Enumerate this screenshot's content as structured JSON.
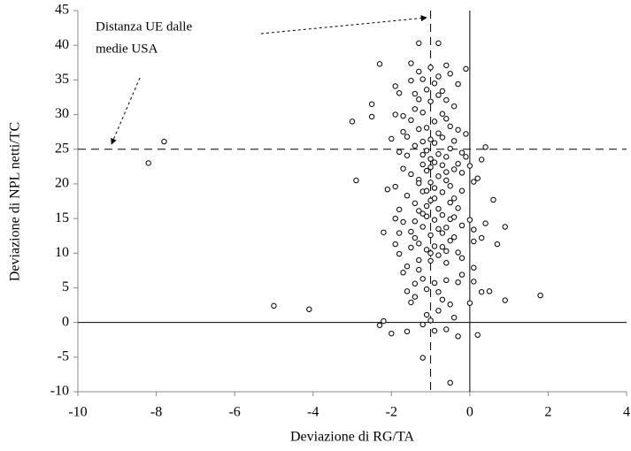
{
  "chart_data": {
    "type": "scatter",
    "x_label": "Deviazione di RG/TA",
    "y_label": "Deviazione  di NPL netti/TC",
    "annotation": [
      "Distanza UE dalle",
      "medie USA"
    ],
    "xlim": [
      -10,
      4
    ],
    "xticks": [
      -10,
      -8,
      -6,
      -4,
      -2,
      0,
      2,
      4
    ],
    "ylim": [
      -10,
      45
    ],
    "yticks": [
      -10,
      -5,
      0,
      5,
      10,
      15,
      20,
      25,
      30,
      35,
      40,
      45
    ],
    "dashed_lines": {
      "x": -1,
      "y": 25
    },
    "zero_lines": true,
    "color": "#000000",
    "x": [
      -8.2,
      -7.8,
      -5,
      -4.1,
      -3,
      -2.9,
      -2.5,
      -2.5,
      -2.3,
      -2.2,
      -2.3,
      -2.2,
      -2,
      -2.1,
      -2,
      -1.3,
      -0.8,
      -1.2,
      -0.5,
      -0.3,
      0.2,
      1.8,
      0.9,
      0.9,
      0.7,
      0.6,
      0.4,
      0.4,
      0.5,
      0.3,
      0.2,
      0.1,
      0,
      0.1,
      0.3,
      0.1,
      0.1,
      0,
      -0.1,
      -0.1,
      -0.1,
      0,
      0.3,
      0.1,
      -0.3,
      -0.5,
      -0.6,
      -1.5,
      -1.9,
      -1.8,
      -1.7,
      -1.6,
      -1.5,
      -1.4,
      -1.3,
      -1.2,
      -1.1,
      -1.0,
      -0.9,
      -0.8,
      -0.7,
      -0.6,
      -0.5,
      -0.4,
      -0.3,
      -1.8,
      -1.6,
      -1.4,
      -1.2,
      -1.1,
      -1.0,
      -0.9,
      -0.8,
      -0.7,
      -0.6,
      -0.5,
      -0.4,
      -0.3,
      -1.7,
      -1.5,
      -1.3,
      -1.2,
      -1.1,
      -1.0,
      -0.9,
      -0.8,
      -0.7,
      -0.6,
      -0.5,
      -0.4,
      -0.3,
      -1.6,
      -1.4,
      -1.3,
      -1.2,
      -1.1,
      -1.0,
      -0.9,
      -0.8,
      -0.7,
      -0.6,
      -0.5,
      -0.4,
      -1.7,
      -1.5,
      -1.4,
      -1.3,
      -1.2,
      -1.1,
      -1.0,
      -0.9,
      -0.8,
      -0.7,
      -0.6,
      -0.5,
      -0.3,
      -1.8,
      -1.6,
      -1.4,
      -1.3,
      -1.2,
      -1.1,
      -1.0,
      -0.9,
      -0.8,
      -0.7,
      -0.6,
      -0.5,
      -0.3,
      -1.5,
      -1.1,
      -1.0,
      -0.8,
      -0.4,
      -1.2,
      -0.9,
      -1.6,
      -0.6,
      -1.5,
      -1.3,
      -1.0,
      -0.8,
      -0.7,
      -0.6,
      -1.4,
      -1.2,
      -0.9,
      -1.1,
      -0.8,
      -1.0,
      -1.3,
      -1.9,
      -1.7,
      -0.4,
      -0.2,
      -0.2,
      -0.2,
      -0.2,
      -0.2,
      -0.2,
      -1.9,
      -1.9,
      -1.9,
      -1.8,
      -1.8,
      -1.7,
      -1.6,
      -1.4,
      -1.3,
      -1.0,
      -0.9,
      -1.2,
      -0.7,
      -0.6,
      -0.5,
      -0.4,
      -0.7,
      -0.8,
      -1.1,
      -1.1,
      -0.9,
      -1.2,
      -1.4,
      -0.6,
      -1.0,
      -1.5,
      -1.3
    ],
    "y": [
      23,
      26.1,
      2.4,
      1.9,
      29,
      20.5,
      31.5,
      29.7,
      37.3,
      13,
      -0.4,
      0.2,
      -1.6,
      19.2,
      26.5,
      40.3,
      40.3,
      -5.1,
      -8.7,
      -2,
      -1.8,
      3.9,
      3.2,
      13.8,
      11.3,
      17.7,
      25.3,
      14.3,
      4.5,
      4.4,
      20.8,
      7.9,
      14.8,
      13.4,
      12.2,
      11.7,
      5.9,
      2.8,
      36.6,
      27.2,
      23.9,
      22.6,
      23.5,
      20.3,
      34.4,
      35.9,
      37.1,
      37.4,
      34.1,
      33.1,
      27.5,
      26.8,
      29.2,
      30.8,
      32.2,
      35.1,
      33.6,
      31.9,
      34.5,
      32.8,
      30.1,
      29.4,
      28.3,
      31.2,
      27.8,
      24.6,
      24.1,
      25.5,
      26.1,
      24.8,
      23.6,
      25.9,
      24.3,
      22.7,
      23.9,
      25.1,
      22.1,
      22.9,
      22.2,
      21.4,
      20.6,
      22.8,
      21.9,
      20.2,
      19.4,
      21.1,
      18.8,
      20.5,
      19.7,
      17.9,
      16.5,
      18.3,
      17.2,
      16.1,
      18.9,
      15.3,
      17.6,
      14.8,
      16.4,
      15.5,
      13.7,
      14.9,
      12.3,
      14.5,
      13.1,
      12.2,
      11.4,
      13.8,
      10.5,
      12.6,
      11.0,
      9.7,
      10.9,
      8.6,
      11.8,
      10.1,
      9.9,
      8.1,
      5.6,
      7.6,
      6.3,
      4.8,
      8.9,
      5.7,
      4.4,
      3.3,
      6.1,
      2.6,
      5.8,
      2.9,
      1.1,
      0.3,
      1.7,
      0.7,
      -0.3,
      -1.2,
      -1.3,
      -1.0,
      34.9,
      36.2,
      36.8,
      35.5,
      33.4,
      32.1,
      33.0,
      30.3,
      29.0,
      28.1,
      27.3,
      26.4,
      27.9,
      30.0,
      29.8,
      26.2,
      24.5,
      21.6,
      19.0,
      14.0,
      9.3,
      6.9,
      19.6,
      15.0,
      11.3,
      16.3,
      12.9,
      7.2,
      4.5,
      3.7,
      20.1,
      22.4,
      23.1,
      24.2,
      26.7,
      21.7,
      17.3,
      15.2,
      12.9,
      13.5,
      19.0,
      16.8,
      17.9,
      15.7,
      14.6,
      10.3,
      10.0,
      10.8,
      9.0
    ]
  }
}
